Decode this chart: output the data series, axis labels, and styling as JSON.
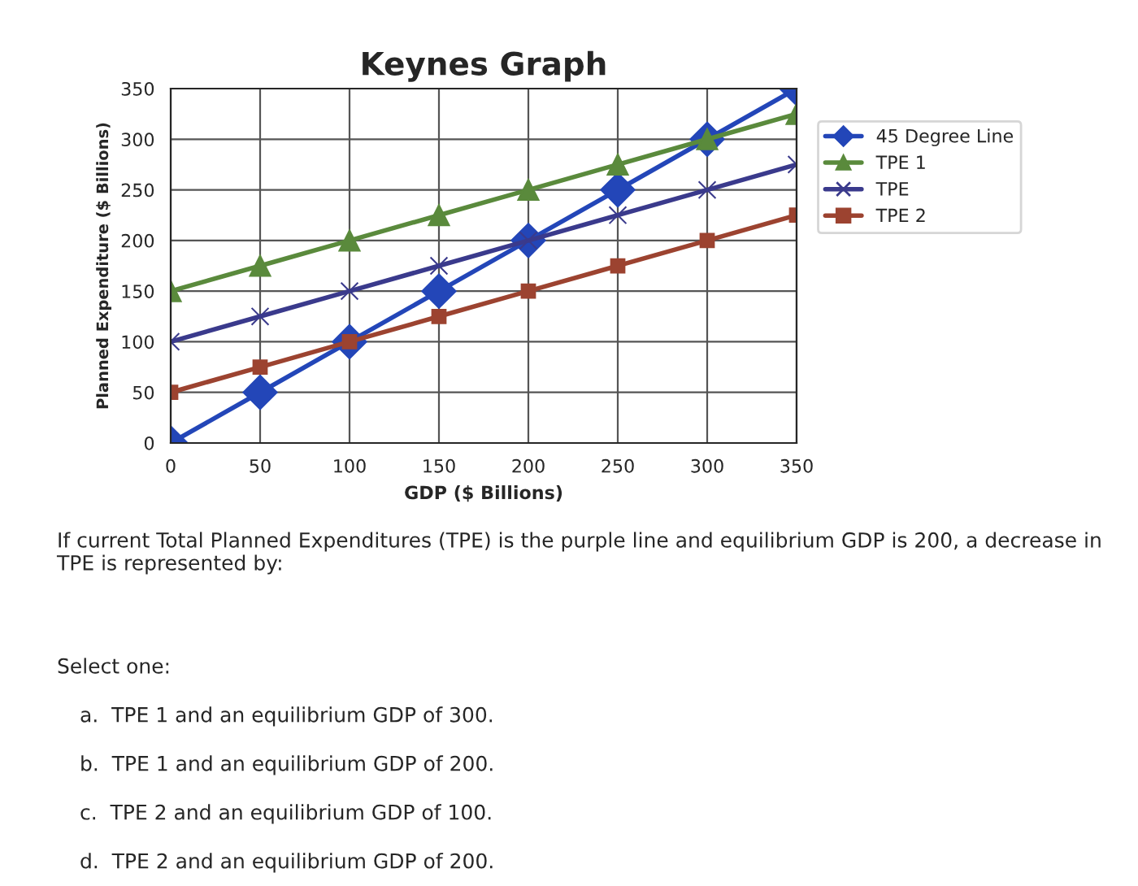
{
  "chart_data": {
    "type": "line",
    "title": "Keynes Graph",
    "xlabel": "GDP ($ Billions)",
    "ylabel": "Planned Expenditure ($ Billions)",
    "x": [
      0,
      50,
      100,
      150,
      200,
      250,
      300,
      350
    ],
    "series": [
      {
        "name": "45 Degree Line",
        "color": "#2346b8",
        "marker": "diamond",
        "values": [
          0,
          50,
          100,
          150,
          200,
          250,
          300,
          350
        ]
      },
      {
        "name": "TPE 1",
        "color": "#5a8a3c",
        "marker": "triangle",
        "values": [
          150,
          175,
          200,
          225,
          250,
          275,
          300,
          325
        ]
      },
      {
        "name": "TPE",
        "color": "#3a3a8c",
        "marker": "cross",
        "values": [
          100,
          125,
          150,
          175,
          200,
          225,
          250,
          275
        ]
      },
      {
        "name": "TPE 2",
        "color": "#9c4330",
        "marker": "square",
        "values": [
          50,
          75,
          100,
          125,
          150,
          175,
          200,
          225
        ]
      }
    ],
    "xlim": [
      0,
      350
    ],
    "ylim": [
      0,
      350
    ],
    "xticks": [
      0,
      50,
      100,
      150,
      200,
      250,
      300,
      350
    ],
    "yticks": [
      0,
      50,
      100,
      150,
      200,
      250,
      300,
      350
    ],
    "grid": true,
    "legend": "right",
    "annotations": [
      "If current Total Planned Expenditures (TPE) is the purple line and equilibrium GDP is 200, a decrease in TPE is represented by:",
      "Select one:",
      "a.  TPE 1 and an equilibrium GDP of 300.",
      "b.  TPE 1 and an equilibrium GDP of 200.",
      "c.  TPE 2 and an equilibrium GDP of 100.",
      "d.  TPE 2 and an equilibrium GDP of 200."
    ]
  }
}
